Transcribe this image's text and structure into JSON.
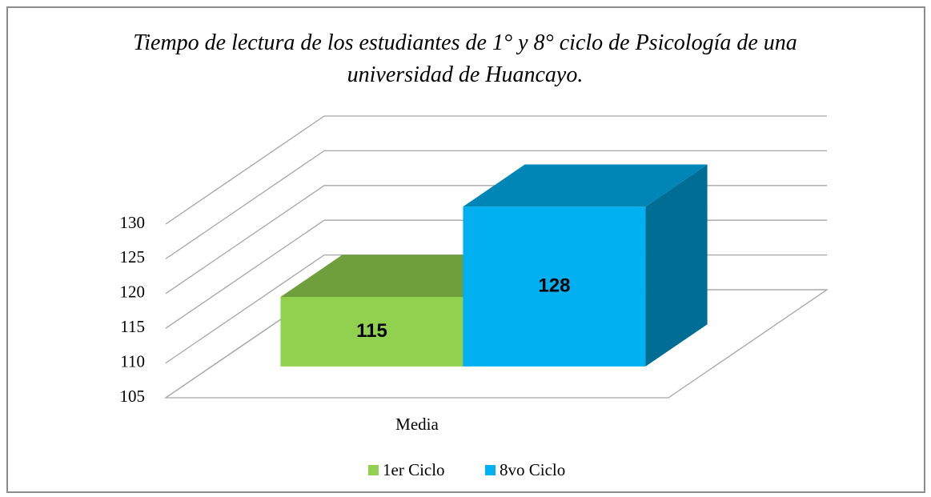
{
  "chart_data": {
    "type": "bar3d",
    "title": "Tiempo de lectura de los estudiantes de 1° y 8° ciclo de Psicología de una universidad de Huancayo.",
    "categories": [
      "Media"
    ],
    "series": [
      {
        "name": "1er Ciclo",
        "color": "#92d050",
        "values": [
          115
        ]
      },
      {
        "name": "8vo Ciclo",
        "color": "#00b0f0",
        "values": [
          128
        ]
      }
    ],
    "ylim": [
      105,
      130
    ],
    "yticks": [
      105,
      110,
      115,
      120,
      125,
      130
    ],
    "grid": true,
    "legend": "bottom"
  }
}
